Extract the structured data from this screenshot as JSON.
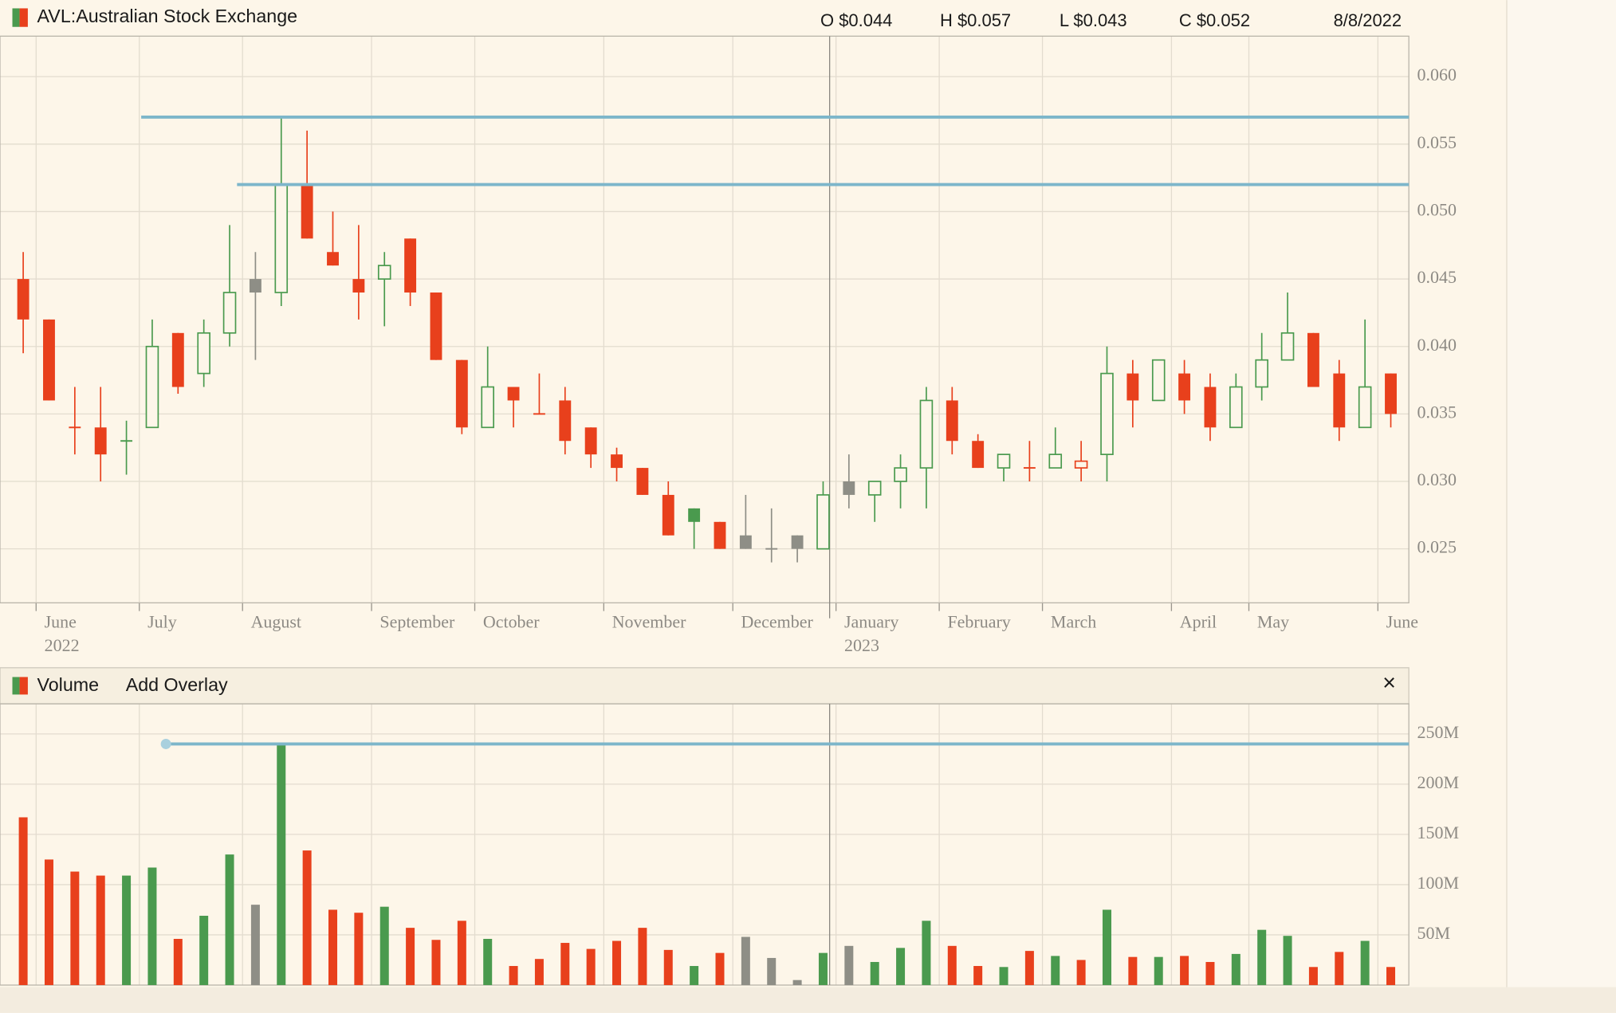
{
  "header": {
    "title": "AVL:Australian Stock Exchange",
    "open": "O $0.044",
    "high": "H $0.057",
    "low": "L $0.043",
    "close": "C $0.052",
    "date": "8/8/2022"
  },
  "volume_header": {
    "title": "Volume",
    "overlay": "Add Overlay",
    "close": "×"
  },
  "chart_data": [
    {
      "type": "candlestick",
      "categories": [
        null,
        "June",
        null,
        null,
        null,
        "July",
        null,
        null,
        null,
        "August",
        null,
        null,
        null,
        null,
        "September",
        null,
        null,
        null,
        "October",
        null,
        null,
        null,
        null,
        "November",
        null,
        null,
        null,
        null,
        "December",
        null,
        null,
        null,
        "January",
        null,
        null,
        null,
        "February",
        null,
        null,
        null,
        "March",
        null,
        null,
        null,
        null,
        "April",
        null,
        null,
        "May",
        null,
        null,
        null,
        null,
        "June"
      ],
      "years": [
        null,
        "2022",
        null,
        null,
        null,
        null,
        null,
        null,
        null,
        null,
        null,
        null,
        null,
        null,
        null,
        null,
        null,
        null,
        null,
        null,
        null,
        null,
        null,
        null,
        null,
        null,
        null,
        null,
        null,
        null,
        null,
        null,
        "2023",
        null,
        null,
        null,
        null,
        null,
        null,
        null,
        null,
        null,
        null,
        null,
        null,
        null,
        null,
        null,
        null,
        null,
        null,
        null,
        null,
        null
      ],
      "open": [
        0.045,
        0.042,
        0.034,
        0.034,
        0.033,
        0.034,
        0.041,
        0.038,
        0.041,
        0.044,
        0.044,
        0.052,
        0.047,
        0.045,
        0.045,
        0.048,
        0.044,
        0.039,
        0.034,
        0.037,
        0.035,
        0.036,
        0.034,
        0.032,
        0.031,
        0.029,
        0.027,
        0.027,
        0.026,
        0.025,
        0.025,
        0.025,
        0.029,
        0.029,
        0.03,
        0.031,
        0.036,
        0.033,
        0.031,
        0.031,
        0.031,
        0.0315,
        0.032,
        0.038,
        0.036,
        0.038,
        0.037,
        0.034,
        0.037,
        0.039,
        0.041,
        0.038,
        0.034,
        0.038
      ],
      "high": [
        0.047,
        0.042,
        0.037,
        0.037,
        0.0345,
        0.042,
        0.041,
        0.042,
        0.049,
        0.047,
        0.057,
        0.056,
        0.05,
        0.049,
        0.047,
        0.048,
        0.044,
        0.039,
        0.04,
        0.037,
        0.038,
        0.037,
        0.034,
        0.0325,
        0.031,
        0.03,
        0.028,
        0.027,
        0.029,
        0.028,
        0.026,
        0.03,
        0.032,
        0.03,
        0.032,
        0.037,
        0.037,
        0.0335,
        0.032,
        0.033,
        0.034,
        0.033,
        0.04,
        0.039,
        0.039,
        0.039,
        0.038,
        0.038,
        0.041,
        0.044,
        0.041,
        0.039,
        0.042,
        0.038
      ],
      "low": [
        0.0395,
        0.036,
        0.032,
        0.03,
        0.0305,
        0.034,
        0.0365,
        0.037,
        0.04,
        0.039,
        0.043,
        0.048,
        0.046,
        0.042,
        0.0415,
        0.043,
        0.039,
        0.0335,
        0.034,
        0.034,
        0.035,
        0.032,
        0.031,
        0.03,
        0.029,
        0.026,
        0.025,
        0.025,
        0.025,
        0.024,
        0.024,
        0.025,
        0.028,
        0.027,
        0.028,
        0.028,
        0.032,
        0.031,
        0.03,
        0.03,
        0.031,
        0.03,
        0.03,
        0.034,
        0.036,
        0.035,
        0.033,
        0.034,
        0.036,
        0.039,
        0.037,
        0.033,
        0.034,
        0.034
      ],
      "close": [
        0.042,
        0.036,
        0.034,
        0.032,
        0.033,
        0.04,
        0.037,
        0.041,
        0.044,
        0.045,
        0.052,
        0.048,
        0.046,
        0.044,
        0.046,
        0.044,
        0.039,
        0.034,
        0.037,
        0.036,
        0.035,
        0.033,
        0.032,
        0.031,
        0.029,
        0.026,
        0.028,
        0.025,
        0.025,
        0.025,
        0.026,
        0.029,
        0.03,
        0.03,
        0.031,
        0.036,
        0.033,
        0.031,
        0.032,
        0.031,
        0.032,
        0.031,
        0.038,
        0.036,
        0.039,
        0.036,
        0.034,
        0.037,
        0.039,
        0.041,
        0.037,
        0.034,
        0.037,
        0.035
      ],
      "styles": [
        "red",
        "red",
        "red",
        "red",
        "green",
        "green",
        "red",
        "green",
        "green",
        "gray",
        "green",
        "red",
        "red",
        "red",
        "green",
        "red",
        "red",
        "red",
        "green",
        "red",
        "red",
        "red",
        "red",
        "red",
        "red",
        "red",
        "green-filled",
        "red",
        "gray",
        "gray",
        "gray",
        "green",
        "gray",
        "green",
        "green",
        "green",
        "red",
        "red",
        "green",
        "red",
        "green",
        "red-hollow",
        "green",
        "red",
        "green",
        "red",
        "red",
        "green",
        "green",
        "green",
        "red",
        "red",
        "green",
        "red"
      ],
      "palette": {
        "red": "#e8401c",
        "green": "#4a9a4e",
        "gray": "#8e8e86"
      },
      "ylim": [
        0.021,
        0.063
      ],
      "yticks": [
        {
          "value": 0.025,
          "label": "0.025"
        },
        {
          "value": 0.03,
          "label": "0.030"
        },
        {
          "value": 0.035,
          "label": "0.035"
        },
        {
          "value": 0.04,
          "label": "0.040"
        },
        {
          "value": 0.045,
          "label": "0.045"
        },
        {
          "value": 0.05,
          "label": "0.050"
        },
        {
          "value": 0.055,
          "label": "0.055"
        },
        {
          "value": 0.06,
          "label": "0.060"
        }
      ],
      "hlines": [
        0.057,
        0.052
      ],
      "hline_color": "#7db6ca",
      "grid": true
    },
    {
      "type": "volume",
      "values": [
        167000000,
        125000000,
        113000000,
        109000000,
        109000000,
        117000000,
        46000000,
        69000000,
        130000000,
        80000000,
        240000000,
        134000000,
        75000000,
        72000000,
        78000000,
        57000000,
        45000000,
        64000000,
        46000000,
        19000000,
        26000000,
        42000000,
        36000000,
        44000000,
        57000000,
        35000000,
        19000000,
        32000000,
        48000000,
        27000000,
        5000000,
        32000000,
        39000000,
        23000000,
        37000000,
        64000000,
        39000000,
        19000000,
        18000000,
        34000000,
        29000000,
        25000000,
        75000000,
        28000000,
        28000000,
        29000000,
        23000000,
        31000000,
        55000000,
        49000000,
        18000000,
        33000000,
        44000000,
        18000000
      ],
      "ylim": [
        0,
        280000000
      ],
      "yticks": [
        {
          "value": 50000000,
          "label": "50M"
        },
        {
          "value": 100000000,
          "label": "100M"
        },
        {
          "value": 150000000,
          "label": "150M"
        },
        {
          "value": 200000000,
          "label": "200M"
        },
        {
          "value": 250000000,
          "label": "250M"
        }
      ],
      "hlines": [
        240000000
      ],
      "grid": true
    }
  ]
}
